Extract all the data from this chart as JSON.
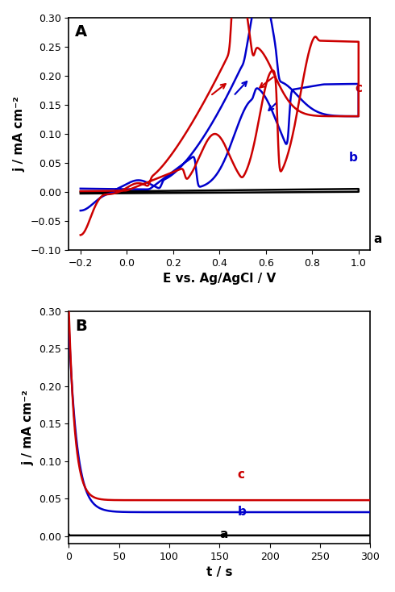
{
  "panel_A": {
    "title": "A",
    "xlabel": "E vs. Ag/AgCl / V",
    "ylabel": "j / mA cm⁻²",
    "xlim": [
      -0.25,
      1.05
    ],
    "ylim": [
      -0.1,
      0.3
    ],
    "xticks": [
      -0.2,
      0.0,
      0.2,
      0.4,
      0.6,
      0.8,
      1.0
    ],
    "yticks": [
      -0.1,
      -0.05,
      0.0,
      0.05,
      0.1,
      0.15,
      0.2,
      0.25,
      0.3
    ],
    "curve_a_color": "#000000",
    "curve_b_color": "#0000cc",
    "curve_c_color": "#cc0000",
    "label_a": "a",
    "label_b": "b",
    "label_c": "c"
  },
  "panel_B": {
    "title": "B",
    "xlabel": "t / s",
    "ylabel": "j / mA cm⁻²",
    "xlim": [
      0,
      300
    ],
    "ylim": [
      -0.01,
      0.3
    ],
    "xticks": [
      0,
      50,
      100,
      150,
      200,
      250,
      300
    ],
    "yticks": [
      0.0,
      0.05,
      0.1,
      0.15,
      0.2,
      0.25,
      0.3
    ],
    "curve_a_color": "#000000",
    "curve_b_color": "#0000cc",
    "curve_c_color": "#cc0000",
    "label_a": "a",
    "label_b": "b",
    "label_c": "c"
  },
  "figure_bg": "#ffffff",
  "axes_bg": "#ffffff"
}
